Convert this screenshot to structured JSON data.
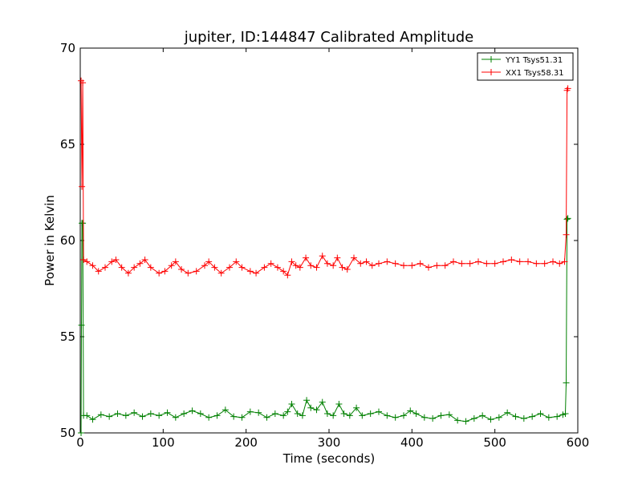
{
  "chart_data": {
    "type": "line",
    "title": "jupiter, ID:144847 Calibrated Amplitude",
    "xlabel": "Time (seconds)",
    "ylabel": "Power in Kelvin",
    "xlim": [
      0,
      600
    ],
    "ylim": [
      50,
      70
    ],
    "xticks": [
      0,
      100,
      200,
      300,
      400,
      500,
      600
    ],
    "yticks": [
      50,
      55,
      60,
      65,
      70
    ],
    "grid": false,
    "legend_position": "top-right",
    "marker": "+",
    "series": [
      {
        "name": "YY1 Tsys51.31",
        "color": "#008000",
        "points": [
          [
            1,
            50.0
          ],
          [
            1.5,
            55.6
          ],
          [
            2,
            60.9
          ],
          [
            3,
            60.9
          ],
          [
            4,
            50.9
          ],
          [
            8,
            50.9
          ],
          [
            15,
            50.7
          ],
          [
            25,
            50.95
          ],
          [
            35,
            50.85
          ],
          [
            45,
            51.0
          ],
          [
            55,
            50.9
          ],
          [
            65,
            51.05
          ],
          [
            75,
            50.85
          ],
          [
            85,
            51.0
          ],
          [
            95,
            50.9
          ],
          [
            105,
            51.05
          ],
          [
            115,
            50.8
          ],
          [
            125,
            51.0
          ],
          [
            135,
            51.15
          ],
          [
            145,
            51.0
          ],
          [
            155,
            50.8
          ],
          [
            165,
            50.9
          ],
          [
            175,
            51.2
          ],
          [
            185,
            50.85
          ],
          [
            195,
            50.8
          ],
          [
            205,
            51.1
          ],
          [
            215,
            51.05
          ],
          [
            225,
            50.8
          ],
          [
            235,
            51.0
          ],
          [
            245,
            50.9
          ],
          [
            250,
            51.1
          ],
          [
            255,
            51.5
          ],
          [
            262,
            51.0
          ],
          [
            268,
            50.9
          ],
          [
            273,
            51.7
          ],
          [
            278,
            51.3
          ],
          [
            285,
            51.2
          ],
          [
            292,
            51.6
          ],
          [
            298,
            51.0
          ],
          [
            305,
            50.9
          ],
          [
            312,
            51.5
          ],
          [
            318,
            51.0
          ],
          [
            325,
            50.9
          ],
          [
            333,
            51.3
          ],
          [
            340,
            50.9
          ],
          [
            350,
            51.0
          ],
          [
            360,
            51.1
          ],
          [
            370,
            50.9
          ],
          [
            380,
            50.8
          ],
          [
            390,
            50.9
          ],
          [
            398,
            51.15
          ],
          [
            405,
            51.0
          ],
          [
            415,
            50.8
          ],
          [
            425,
            50.75
          ],
          [
            435,
            50.9
          ],
          [
            445,
            50.95
          ],
          [
            455,
            50.65
          ],
          [
            465,
            50.6
          ],
          [
            475,
            50.75
          ],
          [
            485,
            50.9
          ],
          [
            495,
            50.7
          ],
          [
            505,
            50.8
          ],
          [
            515,
            51.05
          ],
          [
            525,
            50.85
          ],
          [
            535,
            50.75
          ],
          [
            545,
            50.85
          ],
          [
            555,
            51.0
          ],
          [
            565,
            50.8
          ],
          [
            575,
            50.85
          ],
          [
            582,
            50.95
          ],
          [
            585,
            51.0
          ],
          [
            586,
            52.6
          ],
          [
            587,
            61.1
          ],
          [
            588,
            61.15
          ]
        ]
      },
      {
        "name": "XX1 Tsys58.31",
        "color": "#ff0000",
        "points": [
          [
            1,
            68.3
          ],
          [
            2,
            62.8
          ],
          [
            3,
            68.2
          ],
          [
            4,
            59.0
          ],
          [
            8,
            58.9
          ],
          [
            15,
            58.7
          ],
          [
            22,
            58.4
          ],
          [
            30,
            58.6
          ],
          [
            38,
            58.9
          ],
          [
            43,
            59.0
          ],
          [
            50,
            58.6
          ],
          [
            58,
            58.3
          ],
          [
            65,
            58.6
          ],
          [
            72,
            58.8
          ],
          [
            78,
            59.0
          ],
          [
            85,
            58.6
          ],
          [
            95,
            58.3
          ],
          [
            102,
            58.4
          ],
          [
            110,
            58.7
          ],
          [
            115,
            58.9
          ],
          [
            122,
            58.5
          ],
          [
            130,
            58.3
          ],
          [
            140,
            58.4
          ],
          [
            150,
            58.7
          ],
          [
            155,
            58.9
          ],
          [
            162,
            58.6
          ],
          [
            170,
            58.3
          ],
          [
            180,
            58.6
          ],
          [
            188,
            58.9
          ],
          [
            195,
            58.6
          ],
          [
            205,
            58.4
          ],
          [
            212,
            58.3
          ],
          [
            222,
            58.6
          ],
          [
            230,
            58.8
          ],
          [
            238,
            58.6
          ],
          [
            245,
            58.4
          ],
          [
            250,
            58.2
          ],
          [
            255,
            58.9
          ],
          [
            260,
            58.7
          ],
          [
            265,
            58.6
          ],
          [
            272,
            59.1
          ],
          [
            278,
            58.7
          ],
          [
            285,
            58.6
          ],
          [
            292,
            59.2
          ],
          [
            298,
            58.8
          ],
          [
            305,
            58.7
          ],
          [
            310,
            59.1
          ],
          [
            316,
            58.6
          ],
          [
            322,
            58.5
          ],
          [
            330,
            59.1
          ],
          [
            338,
            58.8
          ],
          [
            345,
            58.9
          ],
          [
            352,
            58.7
          ],
          [
            360,
            58.8
          ],
          [
            370,
            58.9
          ],
          [
            380,
            58.8
          ],
          [
            390,
            58.7
          ],
          [
            400,
            58.7
          ],
          [
            410,
            58.8
          ],
          [
            420,
            58.6
          ],
          [
            430,
            58.7
          ],
          [
            440,
            58.7
          ],
          [
            450,
            58.9
          ],
          [
            460,
            58.8
          ],
          [
            470,
            58.8
          ],
          [
            480,
            58.9
          ],
          [
            490,
            58.8
          ],
          [
            500,
            58.8
          ],
          [
            510,
            58.9
          ],
          [
            520,
            59.0
          ],
          [
            530,
            58.9
          ],
          [
            540,
            58.9
          ],
          [
            550,
            58.8
          ],
          [
            560,
            58.8
          ],
          [
            570,
            58.9
          ],
          [
            578,
            58.8
          ],
          [
            584,
            58.9
          ],
          [
            586,
            60.3
          ],
          [
            587,
            67.8
          ],
          [
            588,
            67.9
          ]
        ]
      }
    ]
  }
}
